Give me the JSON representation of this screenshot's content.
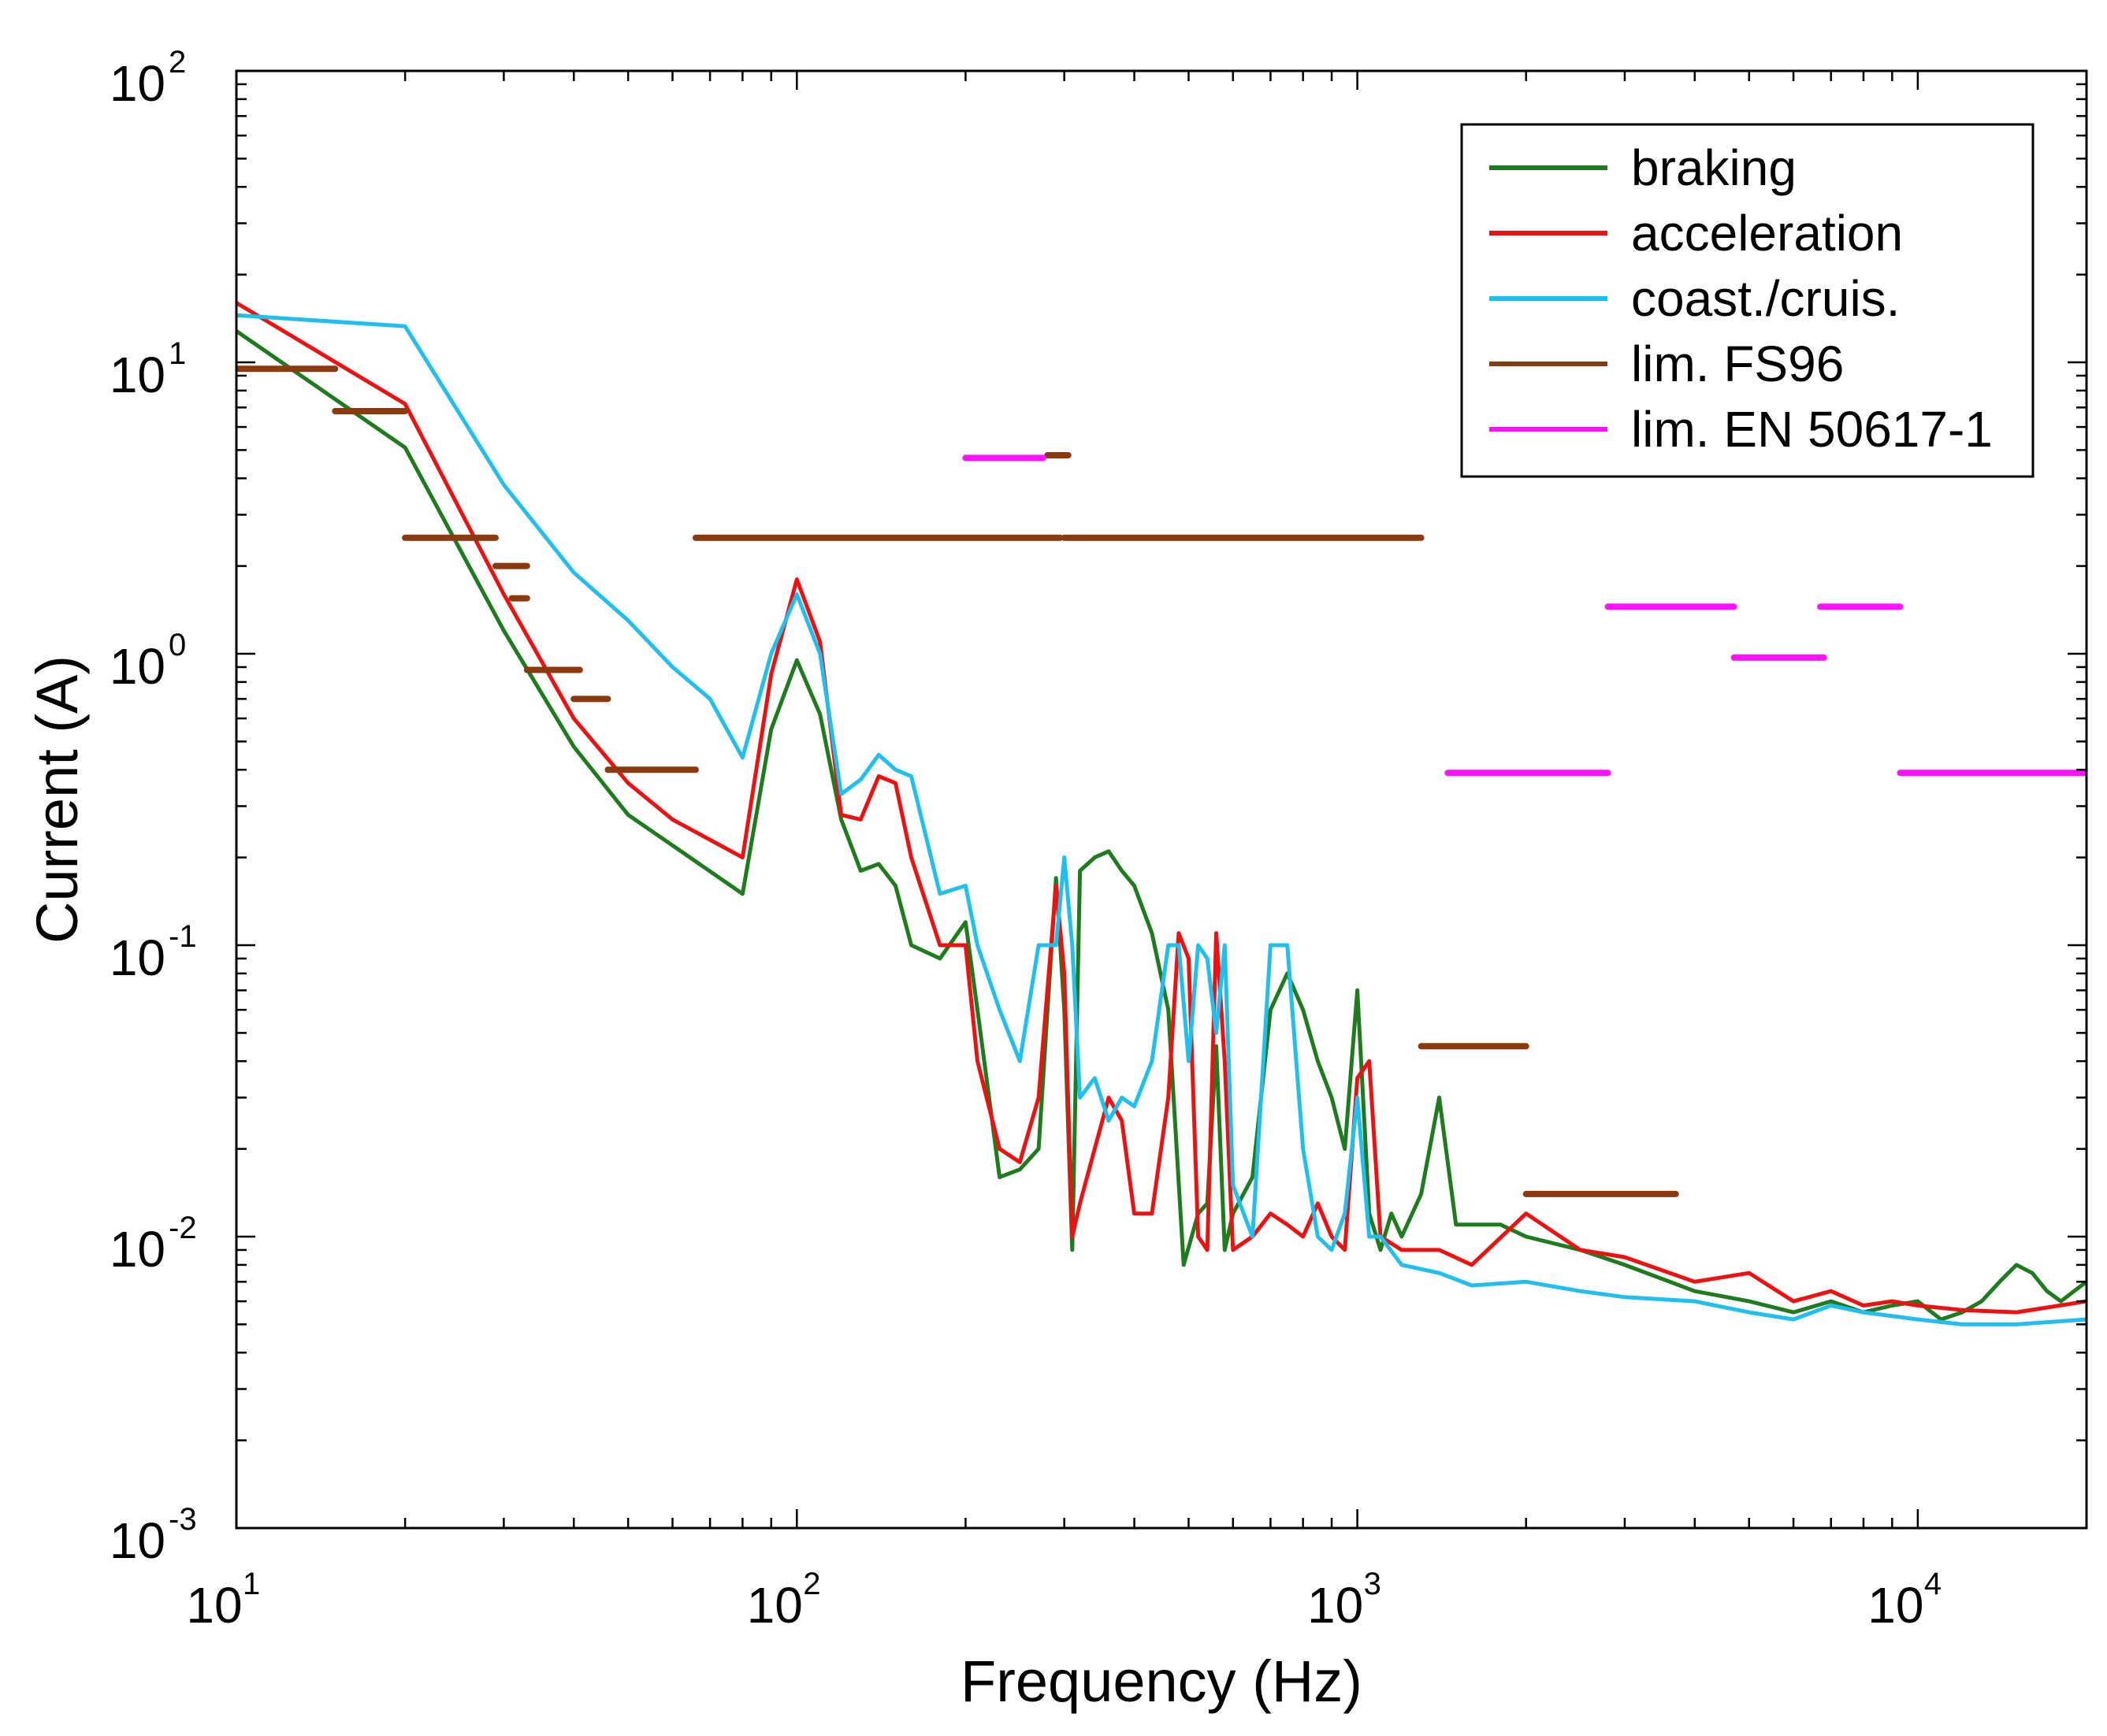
{
  "chart_data": {
    "type": "line",
    "title": "",
    "xlabel": "Frequency (Hz)",
    "ylabel": "Current (A)",
    "xscale": "log",
    "yscale": "log",
    "xlim": [
      10,
      20000
    ],
    "ylim": [
      0.001,
      100
    ],
    "grid": false,
    "legend_position": "top-right",
    "x_ticks": [
      {
        "base": "10",
        "exp": "1",
        "value": 10
      },
      {
        "base": "10",
        "exp": "2",
        "value": 100
      },
      {
        "base": "10",
        "exp": "3",
        "value": 1000
      },
      {
        "base": "10",
        "exp": "4",
        "value": 10000
      }
    ],
    "y_ticks": [
      {
        "base": "10",
        "exp": "-3",
        "value": 0.001
      },
      {
        "base": "10",
        "exp": "-2",
        "value": 0.01
      },
      {
        "base": "10",
        "exp": "-1",
        "value": 0.1
      },
      {
        "base": "10",
        "exp": "0",
        "value": 1
      },
      {
        "base": "10",
        "exp": "1",
        "value": 10
      },
      {
        "base": "10",
        "exp": "2",
        "value": 100
      }
    ],
    "series": [
      {
        "name": "braking",
        "color": "#1e7b1e",
        "kind": "line",
        "x": [
          10,
          20,
          30,
          40,
          50,
          60,
          80,
          90,
          100,
          110,
          120,
          130,
          140,
          150,
          160,
          180,
          200,
          210,
          230,
          250,
          270,
          290,
          300,
          310,
          320,
          340,
          360,
          380,
          400,
          430,
          460,
          490,
          520,
          540,
          560,
          580,
          600,
          650,
          700,
          750,
          800,
          850,
          900,
          950,
          1000,
          1050,
          1100,
          1150,
          1200,
          1300,
          1400,
          1500,
          1800,
          2000,
          2500,
          3000,
          4000,
          5000,
          6000,
          7000,
          8000,
          9000,
          10000,
          11000,
          12000,
          13000,
          14000,
          15000,
          16000,
          17000,
          18000,
          19000,
          20000
        ],
        "y": [
          12.8,
          5.1,
          1.2,
          0.48,
          0.28,
          0.22,
          0.15,
          0.55,
          0.95,
          0.62,
          0.27,
          0.18,
          0.19,
          0.16,
          0.1,
          0.09,
          0.12,
          0.06,
          0.016,
          0.017,
          0.02,
          0.17,
          0.06,
          0.009,
          0.18,
          0.2,
          0.21,
          0.18,
          0.16,
          0.11,
          0.06,
          0.008,
          0.012,
          0.013,
          0.045,
          0.009,
          0.012,
          0.016,
          0.06,
          0.08,
          0.06,
          0.04,
          0.03,
          0.02,
          0.07,
          0.012,
          0.009,
          0.012,
          0.01,
          0.014,
          0.03,
          0.011,
          0.011,
          0.01,
          0.009,
          0.008,
          0.0065,
          0.006,
          0.0055,
          0.006,
          0.0055,
          0.0058,
          0.006,
          0.0052,
          0.0055,
          0.006,
          0.007,
          0.008,
          0.0075,
          0.0065,
          0.006,
          0.0065,
          0.007
        ]
      },
      {
        "name": "acceleration",
        "color": "#ee1111",
        "kind": "line",
        "x": [
          10,
          20,
          30,
          40,
          50,
          60,
          80,
          90,
          100,
          110,
          120,
          130,
          140,
          150,
          160,
          180,
          200,
          210,
          230,
          250,
          270,
          290,
          300,
          310,
          320,
          340,
          360,
          380,
          400,
          430,
          460,
          480,
          500,
          520,
          540,
          560,
          580,
          600,
          650,
          700,
          750,
          800,
          850,
          900,
          950,
          1000,
          1050,
          1100,
          1200,
          1400,
          1600,
          2000,
          2500,
          3000,
          4000,
          5000,
          6000,
          7000,
          8000,
          9000,
          10000,
          12000,
          15000,
          20000
        ],
        "y": [
          16,
          7.2,
          1.6,
          0.6,
          0.36,
          0.27,
          0.2,
          0.85,
          1.8,
          1.1,
          0.28,
          0.27,
          0.38,
          0.36,
          0.2,
          0.1,
          0.1,
          0.04,
          0.02,
          0.018,
          0.03,
          0.16,
          0.08,
          0.01,
          0.013,
          0.02,
          0.03,
          0.025,
          0.012,
          0.012,
          0.03,
          0.11,
          0.09,
          0.01,
          0.009,
          0.11,
          0.04,
          0.009,
          0.01,
          0.012,
          0.011,
          0.01,
          0.013,
          0.01,
          0.009,
          0.035,
          0.04,
          0.01,
          0.009,
          0.009,
          0.008,
          0.012,
          0.009,
          0.0085,
          0.007,
          0.0075,
          0.006,
          0.0065,
          0.0058,
          0.006,
          0.0058,
          0.0056,
          0.0055,
          0.006
        ]
      },
      {
        "name": "coast./cruis.",
        "color": "#1fbfee",
        "kind": "line",
        "x": [
          10,
          20,
          30,
          40,
          50,
          60,
          70,
          80,
          90,
          100,
          110,
          120,
          130,
          140,
          150,
          160,
          180,
          200,
          210,
          230,
          250,
          270,
          290,
          300,
          310,
          320,
          340,
          360,
          380,
          400,
          430,
          460,
          480,
          500,
          520,
          540,
          560,
          580,
          600,
          650,
          700,
          750,
          800,
          850,
          900,
          950,
          1000,
          1050,
          1100,
          1200,
          1400,
          1600,
          2000,
          2500,
          3000,
          4000,
          5000,
          6000,
          7000,
          8000,
          10000,
          12000,
          15000,
          20000
        ],
        "y": [
          14.5,
          13.3,
          3.8,
          1.9,
          1.3,
          0.9,
          0.7,
          0.44,
          1.0,
          1.6,
          1.0,
          0.33,
          0.37,
          0.45,
          0.4,
          0.38,
          0.15,
          0.16,
          0.1,
          0.06,
          0.04,
          0.1,
          0.1,
          0.2,
          0.1,
          0.03,
          0.035,
          0.025,
          0.03,
          0.028,
          0.04,
          0.1,
          0.1,
          0.04,
          0.1,
          0.09,
          0.05,
          0.1,
          0.015,
          0.01,
          0.1,
          0.1,
          0.02,
          0.01,
          0.009,
          0.012,
          0.03,
          0.01,
          0.01,
          0.008,
          0.0075,
          0.0068,
          0.007,
          0.0065,
          0.0062,
          0.006,
          0.0055,
          0.0052,
          0.0058,
          0.0055,
          0.0052,
          0.005,
          0.005,
          0.0052
        ]
      },
      {
        "name": "lim. FS96",
        "color": "#8b3a10",
        "kind": "segments",
        "segments": [
          {
            "x1": 10,
            "x2": 15,
            "y": 9.5
          },
          {
            "x1": 15,
            "x2": 20,
            "y": 6.8
          },
          {
            "x1": 20,
            "x2": 29,
            "y": 2.5
          },
          {
            "x1": 29,
            "x2": 33,
            "y": 2.0
          },
          {
            "x1": 31,
            "x2": 33,
            "y": 1.55
          },
          {
            "x1": 33,
            "x2": 41,
            "y": 0.88
          },
          {
            "x1": 40,
            "x2": 46,
            "y": 0.7
          },
          {
            "x1": 46,
            "x2": 66,
            "y": 0.4
          },
          {
            "x1": 66,
            "x2": 295,
            "y": 2.5
          },
          {
            "x1": 300,
            "x2": 1300,
            "y": 2.5
          },
          {
            "x1": 280,
            "x2": 305,
            "y": 4.8
          },
          {
            "x1": 1300,
            "x2": 2000,
            "y": 0.045
          },
          {
            "x1": 2000,
            "x2": 3700,
            "y": 0.014
          }
        ]
      },
      {
        "name": "lim. EN 50617-1",
        "color": "#ff10ff",
        "kind": "segments",
        "segments": [
          {
            "x1": 200,
            "x2": 275,
            "y": 4.7
          },
          {
            "x1": 1450,
            "x2": 2800,
            "y": 0.39
          },
          {
            "x1": 2800,
            "x2": 4700,
            "y": 1.45
          },
          {
            "x1": 4700,
            "x2": 6800,
            "y": 0.97
          },
          {
            "x1": 6700,
            "x2": 9300,
            "y": 1.45
          },
          {
            "x1": 9300,
            "x2": 20000,
            "y": 0.39
          }
        ]
      }
    ]
  }
}
